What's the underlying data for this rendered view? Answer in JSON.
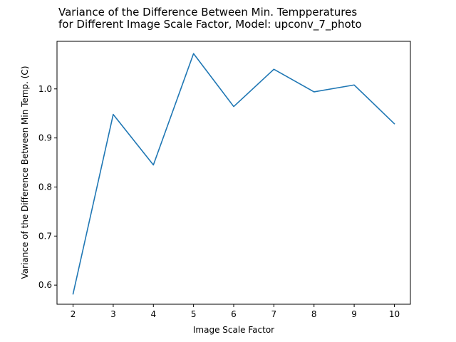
{
  "chart_data": {
    "type": "line",
    "title_lines": [
      "Variance of the Difference Between Min. Tempperatures",
      "for Different Image Scale Factor, Model: upconv_7_photo"
    ],
    "xlabel": "Image Scale Factor",
    "ylabel": "Variance of the Difference Between Min Temp. (C)",
    "x": [
      2,
      3,
      4,
      5,
      6,
      7,
      8,
      9,
      10
    ],
    "series": [
      {
        "values": [
          0.582,
          0.948,
          0.845,
          1.072,
          0.964,
          1.04,
          0.994,
          1.008,
          0.929
        ]
      }
    ],
    "xlim": [
      1.6,
      10.4
    ],
    "ylim": [
      0.561,
      1.097
    ],
    "xticks": [
      "2",
      "3",
      "4",
      "5",
      "6",
      "7",
      "8",
      "9",
      "10"
    ],
    "yticks": [
      0.6,
      0.7,
      0.8,
      0.9,
      1.0
    ],
    "ytick_labels": [
      "0.6",
      "0.7",
      "0.8",
      "0.9",
      "1.0"
    ],
    "line_color": "#1f77b4",
    "grid": false,
    "legend": false
  }
}
